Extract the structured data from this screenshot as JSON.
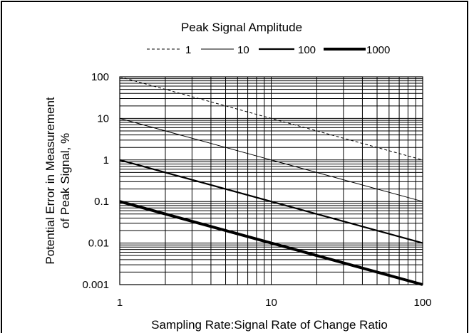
{
  "chart_data": {
    "type": "line",
    "title": "",
    "legend_title": "Peak Signal Amplitude",
    "legend_placement": "top",
    "xlabel": "Sampling Rate:Signal Rate of Change Ratio",
    "ylabel_line1": "Potential Error in Measurement",
    "ylabel_line2": "of Peak Signal, %",
    "xscale": "log",
    "yscale": "log",
    "xlim": [
      1,
      100
    ],
    "ylim": [
      0.001,
      100
    ],
    "grid": true,
    "x_ticks": [
      {
        "value": 1,
        "label": "1"
      },
      {
        "value": 10,
        "label": "10"
      },
      {
        "value": 100,
        "label": "100"
      }
    ],
    "y_ticks": [
      {
        "value": 100,
        "label": "100"
      },
      {
        "value": 10,
        "label": "10"
      },
      {
        "value": 1,
        "label": "1"
      },
      {
        "value": 0.1,
        "label": "0.1"
      },
      {
        "value": 0.01,
        "label": "0.01"
      },
      {
        "value": 0.001,
        "label": "0.001"
      }
    ],
    "series": [
      {
        "name": "1",
        "style": "dashed",
        "color": "#000000",
        "x": [
          1,
          10,
          100
        ],
        "y": [
          100,
          10,
          1
        ]
      },
      {
        "name": "10",
        "style": "solid-thin",
        "color": "#000000",
        "x": [
          1,
          10,
          100
        ],
        "y": [
          10,
          1,
          0.1
        ]
      },
      {
        "name": "100",
        "style": "solid-medium",
        "color": "#000000",
        "x": [
          1,
          10,
          100
        ],
        "y": [
          1,
          0.1,
          0.01
        ]
      },
      {
        "name": "1000",
        "style": "solid-thick",
        "color": "#000000",
        "x": [
          1,
          10,
          100
        ],
        "y": [
          0.1,
          0.01,
          0.001
        ]
      }
    ]
  }
}
